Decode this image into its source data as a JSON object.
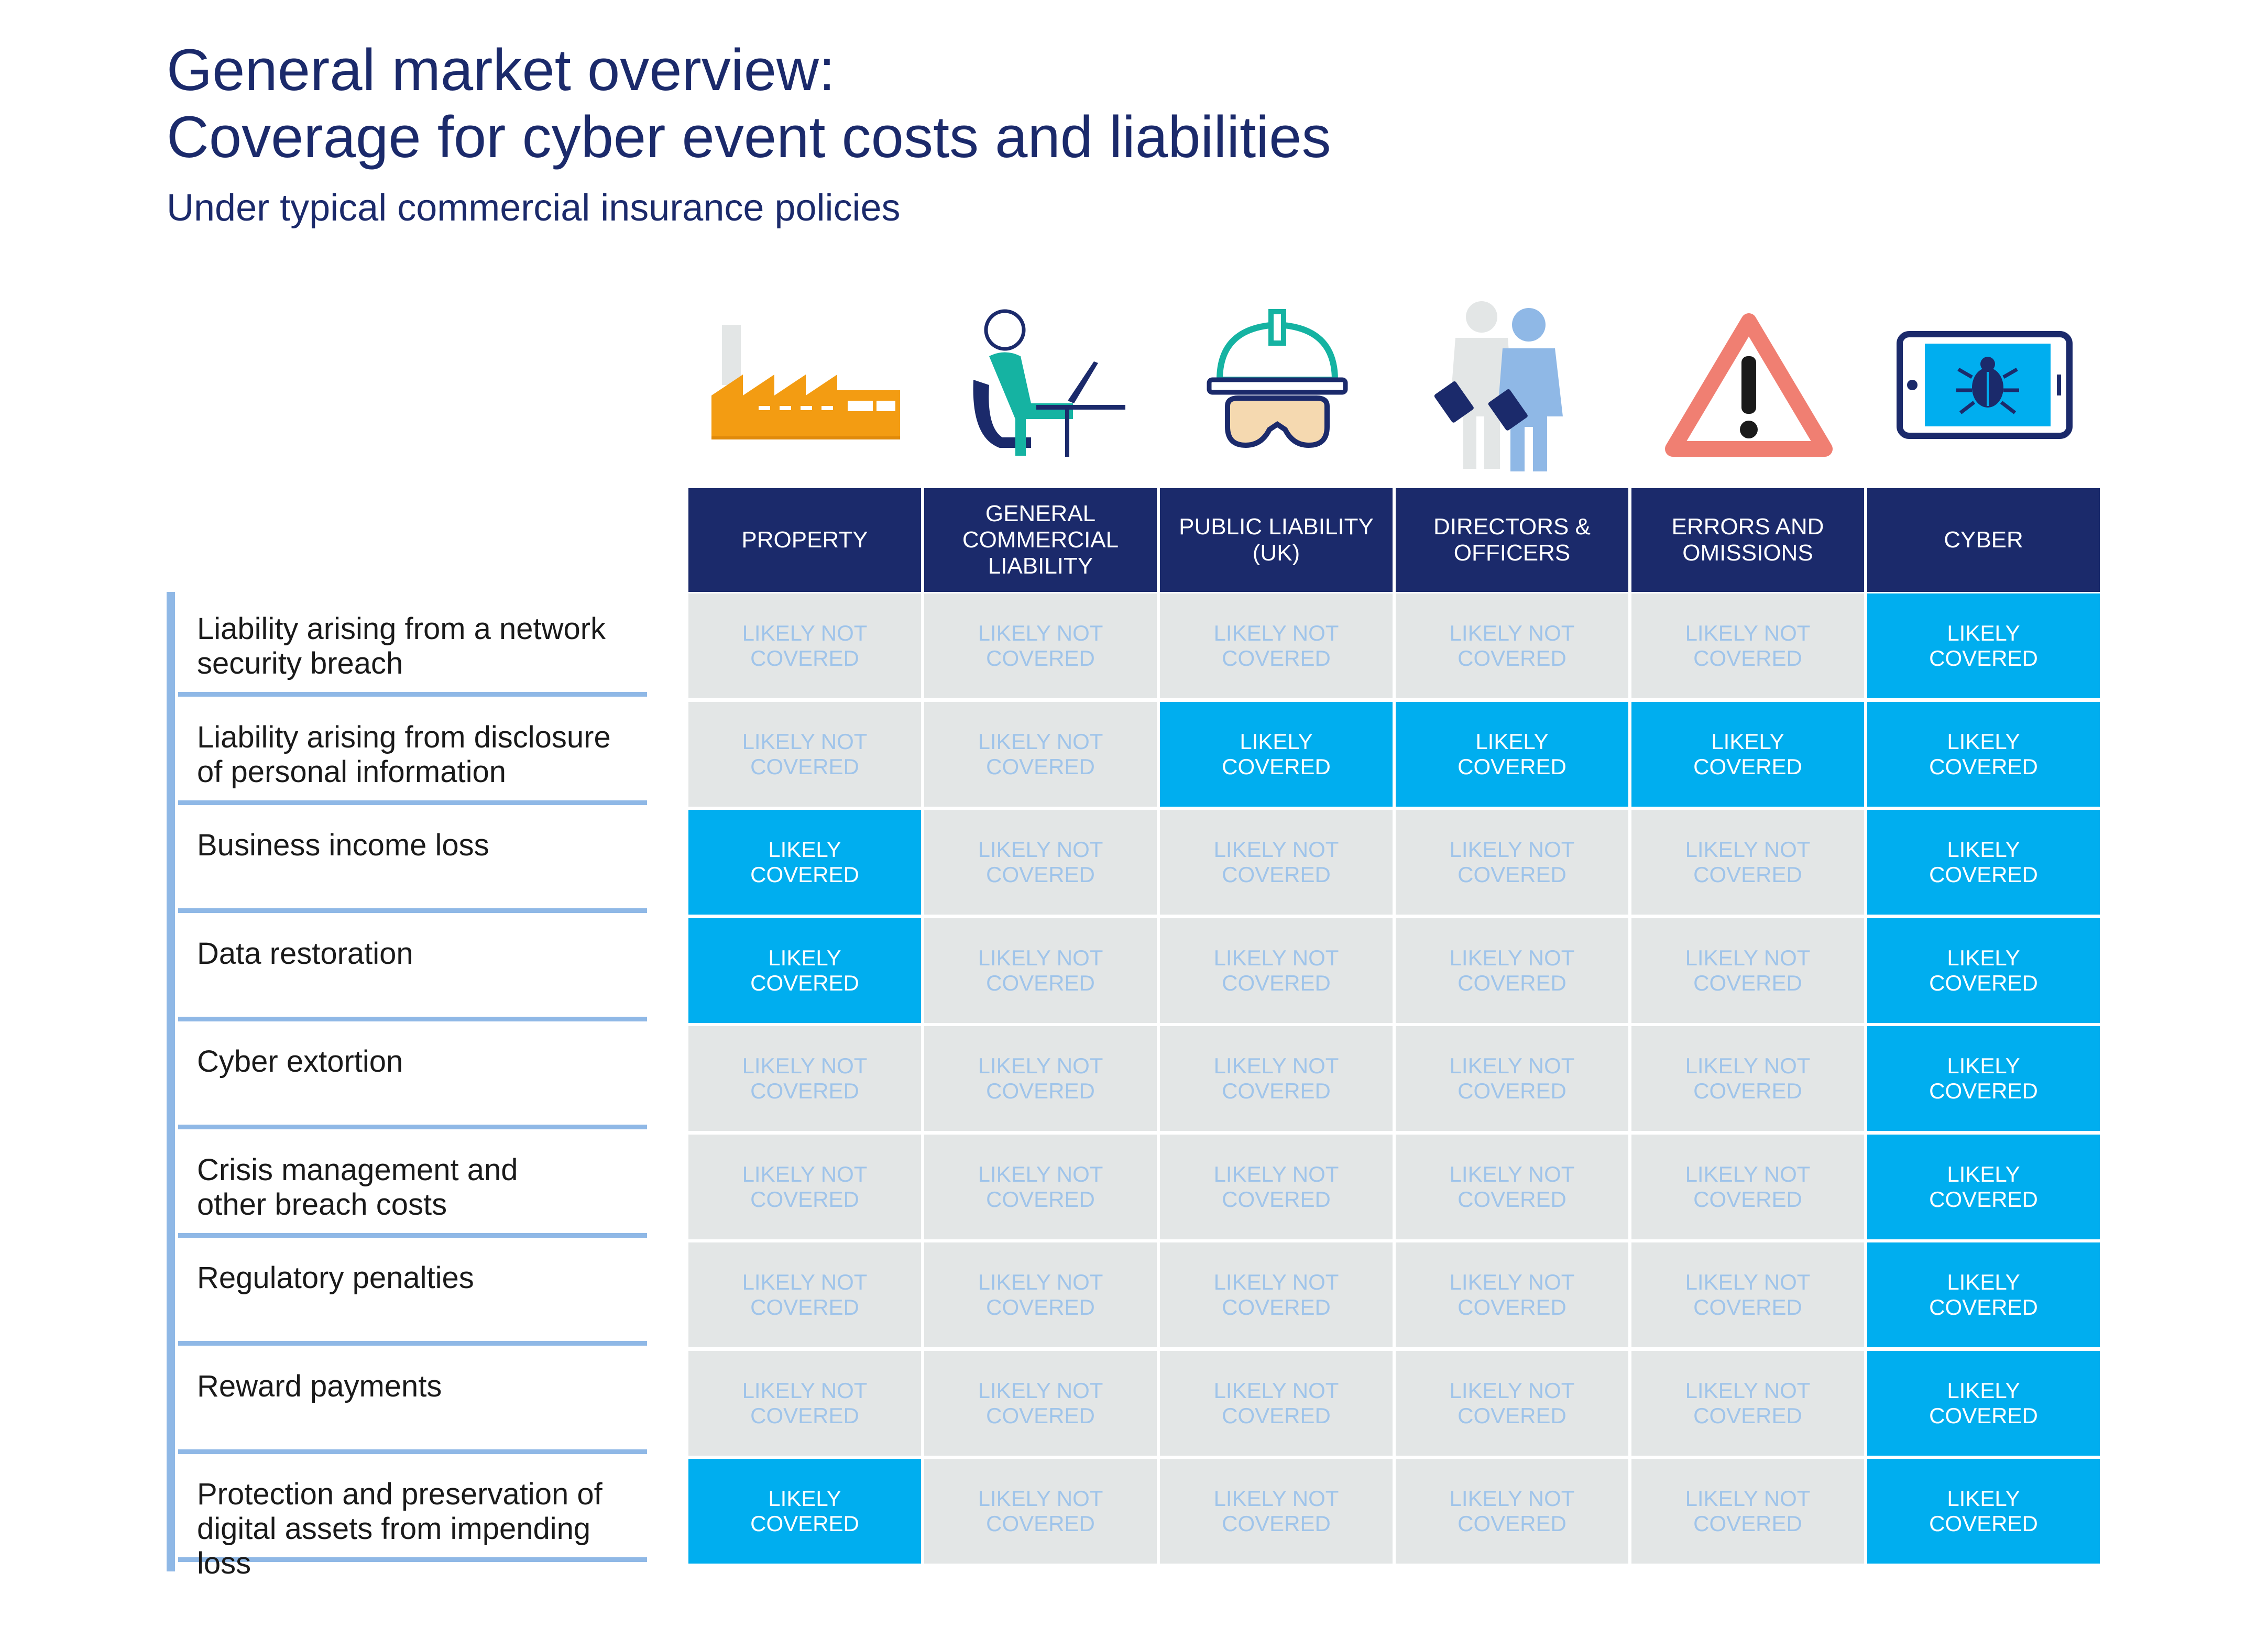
{
  "title": {
    "line1": "General market overview:",
    "line2": "Coverage for cyber event costs and liabilities"
  },
  "subtitle": "Under typical commercial insurance policies",
  "colors": {
    "navy": "#1b2a6b",
    "covered": "#00aeef",
    "not_covered_bg": "#e3e6e6",
    "not_covered_text": "#9fc4ea",
    "accent_orange": "#f39c12",
    "accent_teal": "#15b3a2",
    "accent_salmon": "#f07f72"
  },
  "columns": [
    {
      "label": "PROPERTY",
      "icon": "factory-icon"
    },
    {
      "label": "GENERAL\nCOMMERCIAL\nLIABILITY",
      "icon": "office-worker-icon"
    },
    {
      "label": "PUBLIC LIABILITY\n(UK)",
      "icon": "hard-hat-goggles-icon"
    },
    {
      "label": "DIRECTORS &\nOFFICERS",
      "icon": "business-people-icon"
    },
    {
      "label": "ERRORS AND\nOMISSIONS",
      "icon": "warning-triangle-icon"
    },
    {
      "label": "CYBER",
      "icon": "phone-bug-icon"
    }
  ],
  "labels": {
    "covered": "LIKELY\nCOVERED",
    "not_covered": "LIKELY NOT\nCOVERED"
  },
  "rows": [
    {
      "label": "Liability arising from a network\nsecurity breach",
      "cells": [
        "LIKELY NOT\nCOVERED",
        "LIKELY NOT\nCOVERED",
        "LIKELY NOT\nCOVERED",
        "LIKELY NOT\nCOVERED",
        "LIKELY NOT\nCOVERED",
        "LIKELY\nCOVERED"
      ],
      "covered": [
        false,
        false,
        false,
        false,
        false,
        true
      ]
    },
    {
      "label": "Liability arising from disclosure\nof personal information",
      "cells": [
        "LIKELY NOT\nCOVERED",
        "LIKELY NOT\nCOVERED",
        "LIKELY\nCOVERED",
        "LIKELY\nCOVERED",
        "LIKELY\nCOVERED",
        "LIKELY\nCOVERED"
      ],
      "covered": [
        false,
        false,
        true,
        true,
        true,
        true
      ]
    },
    {
      "label": "Business income loss",
      "cells": [
        "LIKELY\nCOVERED",
        "LIKELY NOT\nCOVERED",
        "LIKELY NOT\nCOVERED",
        "LIKELY NOT\nCOVERED",
        "LIKELY NOT\nCOVERED",
        "LIKELY\nCOVERED"
      ],
      "covered": [
        true,
        false,
        false,
        false,
        false,
        true
      ]
    },
    {
      "label": "Data restoration",
      "cells": [
        "LIKELY\nCOVERED",
        "LIKELY NOT\nCOVERED",
        "LIKELY NOT\nCOVERED",
        "LIKELY NOT\nCOVERED",
        "LIKELY NOT\nCOVERED",
        "LIKELY\nCOVERED"
      ],
      "covered": [
        true,
        false,
        false,
        false,
        false,
        true
      ]
    },
    {
      "label": "Cyber extortion",
      "cells": [
        "LIKELY NOT\nCOVERED",
        "LIKELY NOT\nCOVERED",
        "LIKELY NOT\nCOVERED",
        "LIKELY NOT\nCOVERED",
        "LIKELY NOT\nCOVERED",
        "LIKELY\nCOVERED"
      ],
      "covered": [
        false,
        false,
        false,
        false,
        false,
        true
      ]
    },
    {
      "label": "Crisis management and\nother breach costs",
      "cells": [
        "LIKELY NOT\nCOVERED",
        "LIKELY NOT\nCOVERED",
        "LIKELY NOT\nCOVERED",
        "LIKELY NOT\nCOVERED",
        "LIKELY NOT\nCOVERED",
        "LIKELY\nCOVERED"
      ],
      "covered": [
        false,
        false,
        false,
        false,
        false,
        true
      ]
    },
    {
      "label": "Regulatory penalties",
      "cells": [
        "LIKELY NOT\nCOVERED",
        "LIKELY NOT\nCOVERED",
        "LIKELY NOT\nCOVERED",
        "LIKELY NOT\nCOVERED",
        "LIKELY NOT\nCOVERED",
        "LIKELY\nCOVERED"
      ],
      "covered": [
        false,
        false,
        false,
        false,
        false,
        true
      ]
    },
    {
      "label": "Reward payments",
      "cells": [
        "LIKELY NOT\nCOVERED",
        "LIKELY NOT\nCOVERED",
        "LIKELY NOT\nCOVERED",
        "LIKELY NOT\nCOVERED",
        "LIKELY NOT\nCOVERED",
        "LIKELY\nCOVERED"
      ],
      "covered": [
        false,
        false,
        false,
        false,
        false,
        true
      ]
    },
    {
      "label": "Protection and preservation of\ndigital assets from impending loss",
      "cells": [
        "LIKELY\nCOVERED",
        "LIKELY NOT\nCOVERED",
        "LIKELY NOT\nCOVERED",
        "LIKELY NOT\nCOVERED",
        "LIKELY NOT\nCOVERED",
        "LIKELY\nCOVERED"
      ],
      "covered": [
        true,
        false,
        false,
        false,
        false,
        true
      ]
    }
  ]
}
